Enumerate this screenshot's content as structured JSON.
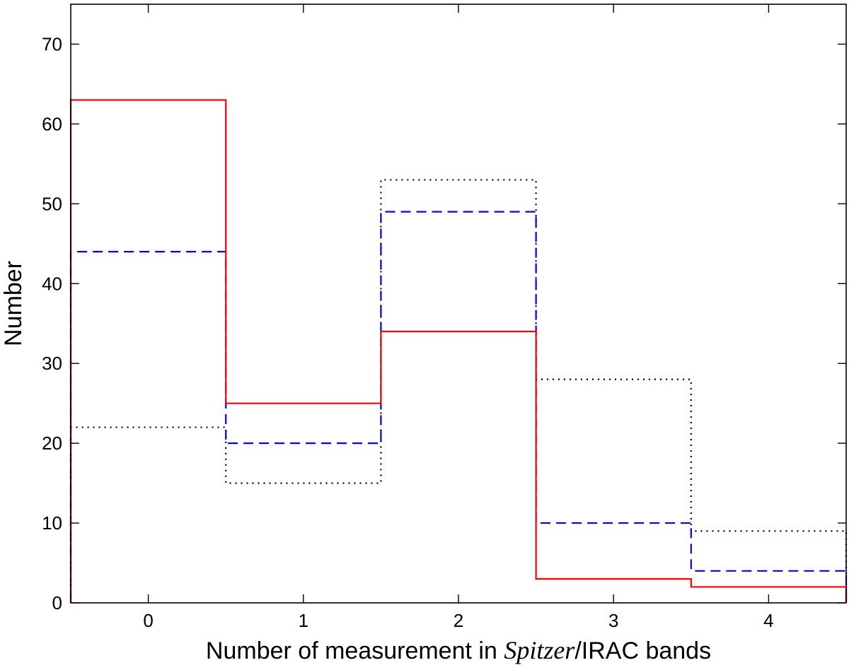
{
  "chart_data": {
    "type": "step",
    "x": [
      0,
      1,
      2,
      3,
      4
    ],
    "xlim": [
      -0.5,
      4.5
    ],
    "ylim": [
      0,
      75
    ],
    "xticks": [
      "0",
      "1",
      "2",
      "3",
      "4"
    ],
    "yticks": [
      "0",
      "10",
      "20",
      "30",
      "40",
      "50",
      "60",
      "70"
    ],
    "xlabel_pre": "Number of measurement in ",
    "xlabel_italic": "Spitzer",
    "xlabel_post": "/IRAC bands",
    "ylabel": "Number",
    "grid": false,
    "series": [
      {
        "values": [
          63,
          25,
          34,
          3,
          2
        ],
        "color": "#ff0000",
        "style": "solid"
      },
      {
        "values": [
          44,
          20,
          49,
          10,
          4
        ],
        "color": "#0000ff",
        "style": "dashed"
      },
      {
        "values": [
          22,
          15,
          53,
          28,
          9
        ],
        "color": "#000000",
        "style": "dotted"
      }
    ]
  }
}
